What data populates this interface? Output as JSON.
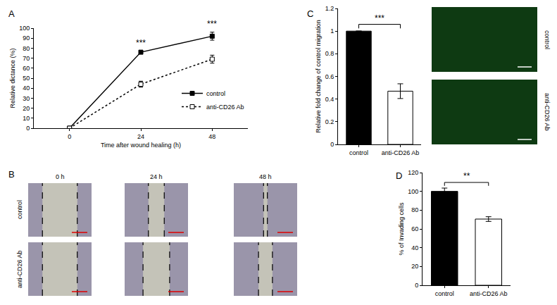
{
  "chart_data": [
    {
      "panel": "A",
      "type": "line",
      "x_label": "Time after wound healing (h)",
      "y_label": "Relative dictance (%)",
      "x": [
        0,
        24,
        48
      ],
      "xlim": [
        -12,
        60
      ],
      "xticks": [
        0,
        24,
        48
      ],
      "ylim": [
        0,
        100
      ],
      "yticks": [
        0,
        10,
        20,
        30,
        40,
        50,
        60,
        70,
        80,
        90,
        100
      ],
      "grid": false,
      "legend": "right",
      "series": [
        {
          "name": "control",
          "color": "#000000",
          "marker": "square",
          "line_style": "solid",
          "values": [
            0,
            76,
            92
          ],
          "errors": [
            0,
            1,
            4
          ]
        },
        {
          "name": "anti-CD26 Ab",
          "color": "#000000",
          "marker": "square-open",
          "line_style": "dot",
          "values": [
            0,
            44,
            69
          ],
          "errors": [
            0,
            3,
            4
          ]
        }
      ],
      "annotations": [
        {
          "x": 24,
          "text": "***"
        },
        {
          "x": 48,
          "text": "***"
        }
      ]
    },
    {
      "panel": "C",
      "type": "bar",
      "y_label": "Relative fold change of control migration",
      "categories": [
        "control",
        "anti-CD26 Ab"
      ],
      "values": [
        1,
        0.47
      ],
      "errors": [
        0,
        0.065
      ],
      "colors": [
        "#000000",
        "#ffffff"
      ],
      "ylim": [
        0,
        1.2
      ],
      "yticks": [
        0,
        0.2,
        0.4,
        0.6,
        0.8,
        1,
        1.2
      ],
      "grid": false,
      "annotations": [
        {
          "text": "***",
          "between": [
            "control",
            "anti-CD26 Ab"
          ]
        }
      ],
      "image_rows": [
        "control",
        "anti-CD26 Ab"
      ]
    },
    {
      "panel": "D",
      "type": "bar",
      "y_label": "% of Invading cells",
      "categories": [
        "control",
        "anti-CD26 Ab"
      ],
      "values": [
        100,
        70.5
      ],
      "errors": [
        3.5,
        2.5
      ],
      "colors": [
        "#000000",
        "#ffffff"
      ],
      "ylim": [
        0,
        120
      ],
      "yticks": [
        0,
        20,
        40,
        60,
        80,
        100,
        120
      ],
      "grid": false,
      "annotations": [
        {
          "text": "**",
          "between": [
            "control",
            "anti-CD26 Ab"
          ]
        }
      ]
    }
  ],
  "image_panels": [
    {
      "panel": "B",
      "columns": [
        "0 h",
        "24 h",
        "48 h"
      ],
      "rows": [
        "control",
        "anti-CD26 Ab"
      ]
    }
  ]
}
